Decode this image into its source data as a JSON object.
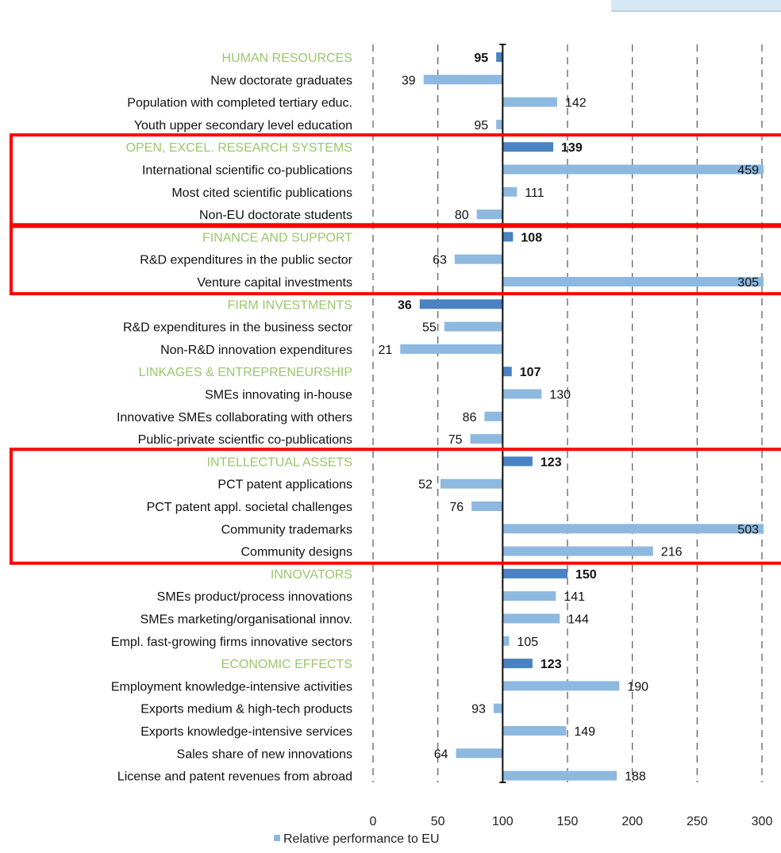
{
  "chart_data": {
    "type": "bar",
    "orientation": "horizontal",
    "title": "",
    "xlabel": "",
    "ylabel": "",
    "xlim": [
      0,
      300
    ],
    "xticks": [
      0,
      50,
      100,
      150,
      200,
      250,
      300
    ],
    "baseline": 100,
    "grid": true,
    "legend": {
      "entries": [
        "Relative performance to EU"
      ],
      "placement": "bottom"
    },
    "colors": {
      "indicator": "#8db8e0",
      "group": "#4a82c3",
      "group_label": "#9cc66b",
      "highlight_box": "#ff0000"
    },
    "rows": [
      {
        "label": "HUMAN RESOURCES",
        "value": 95,
        "group": true
      },
      {
        "label": "New doctorate graduates",
        "value": 39
      },
      {
        "label": "Population with completed tertiary educ.",
        "value": 142
      },
      {
        "label": "Youth upper secondary level education",
        "value": 95
      },
      {
        "label": "OPEN, EXCEL. RESEARCH SYSTEMS",
        "value": 139,
        "group": true
      },
      {
        "label": "International scientific co-publications",
        "value": 459
      },
      {
        "label": "Most cited scientific publications",
        "value": 111
      },
      {
        "label": "Non-EU doctorate students",
        "value": 80
      },
      {
        "label": "FINANCE AND SUPPORT",
        "value": 108,
        "group": true
      },
      {
        "label": "R&D expenditures in the public sector",
        "value": 63
      },
      {
        "label": "Venture capital investments",
        "value": 305
      },
      {
        "label": "FIRM INVESTMENTS",
        "value": 36,
        "group": true
      },
      {
        "label": "R&D expenditures in the business sector",
        "value": 55
      },
      {
        "label": "Non-R&D innovation expenditures",
        "value": 21
      },
      {
        "label": "LINKAGES & ENTREPRENEURSHIP",
        "value": 107,
        "group": true
      },
      {
        "label": "SMEs innovating in-house",
        "value": 130
      },
      {
        "label": "Innovative SMEs collaborating with others",
        "value": 86
      },
      {
        "label": "Public-private scientfic co-publications",
        "value": 75
      },
      {
        "label": "INTELLECTUAL ASSETS",
        "value": 123,
        "group": true
      },
      {
        "label": "PCT patent applications",
        "value": 52
      },
      {
        "label": "PCT patent appl. societal challenges",
        "value": 76
      },
      {
        "label": "Community trademarks",
        "value": 503
      },
      {
        "label": "Community designs",
        "value": 216
      },
      {
        "label": "INNOVATORS",
        "value": 150,
        "group": true
      },
      {
        "label": "SMEs product/process innovations",
        "value": 141
      },
      {
        "label": "SMEs marketing/organisational innov.",
        "value": 144
      },
      {
        "label": "Empl. fast-growing firms innovative sectors",
        "value": 105
      },
      {
        "label": "ECONOMIC EFFECTS",
        "value": 123,
        "group": true
      },
      {
        "label": "Employment knowledge-intensive activities",
        "value": 190
      },
      {
        "label": "Exports medium & high-tech products",
        "value": 93
      },
      {
        "label": "Exports knowledge-intensive services",
        "value": 149
      },
      {
        "label": "Sales share of new innovations",
        "value": 64
      },
      {
        "label": "License and patent revenues from abroad",
        "value": 188
      }
    ],
    "highlight_groups": [
      "OPEN, EXCEL. RESEARCH SYSTEMS",
      "FINANCE AND SUPPORT",
      "INTELLECTUAL ASSETS"
    ]
  }
}
